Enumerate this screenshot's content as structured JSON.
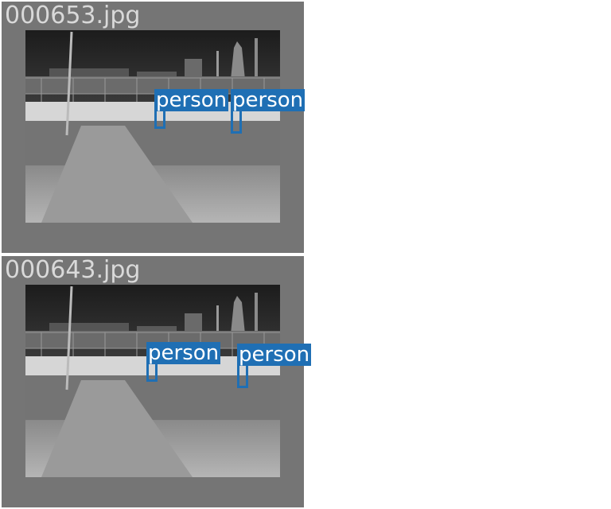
{
  "images": [
    {
      "filename": "000653.jpg",
      "detections": [
        {
          "label": "person"
        },
        {
          "label": "person"
        }
      ]
    },
    {
      "filename": "000643.jpg",
      "detections": [
        {
          "label": "person"
        },
        {
          "label": "person"
        }
      ]
    }
  ],
  "colors": {
    "panel_background": "#757575",
    "filename_text": "#d9d9d9",
    "detection_box": "#1f6fb4",
    "label_text": "#ffffff"
  }
}
